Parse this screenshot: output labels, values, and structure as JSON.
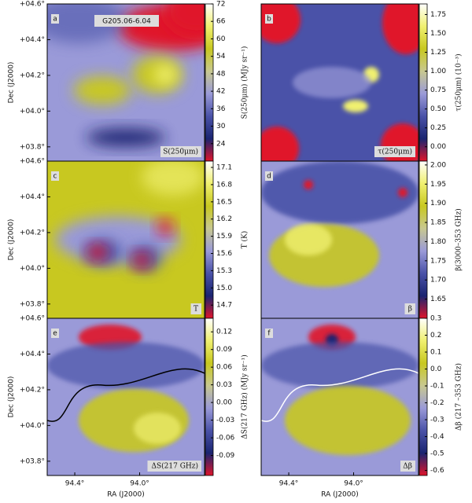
{
  "colormap": [
    "#e0142a",
    "#1a2470",
    "#4a52a8",
    "#9a9ad8",
    "#c8c890",
    "#c8c820",
    "#f0f070",
    "#ffffff"
  ],
  "chart_data": [
    {
      "type": "heatmap",
      "panel": "a",
      "title": "G205.06-6.04",
      "label": "S(250μm)",
      "colorbar_label": "S(250μm) (MJy sr⁻¹)",
      "clim": [
        18,
        72
      ],
      "cticks": [
        24,
        30,
        36,
        42,
        48,
        54,
        60,
        66,
        72
      ],
      "ylabel": "Dec (J2000)",
      "ylim": [
        3.72,
        4.6
      ],
      "yticks": [
        {
          "value": 3.8,
          "label": "+03.8°"
        },
        {
          "value": 4.0,
          "label": "+04.0°"
        },
        {
          "value": 4.2,
          "label": "+04.2°"
        },
        {
          "value": 4.4,
          "label": "+04.4°"
        },
        {
          "value": 4.6,
          "label": "+04.6°"
        }
      ]
    },
    {
      "type": "heatmap",
      "panel": "b",
      "label": "τ(250μm)",
      "colorbar_label": "τ(250μm) (10⁻³)",
      "clim": [
        -0.19,
        1.89
      ],
      "cticks": [
        {
          "value": 0,
          "label": "0.00"
        },
        {
          "value": 0.25,
          "label": "0.25"
        },
        {
          "value": 0.5,
          "label": "0.50"
        },
        {
          "value": 0.75,
          "label": "0.75"
        },
        {
          "value": 1,
          "label": "1.00"
        },
        {
          "value": 1.25,
          "label": "1.25"
        },
        {
          "value": 1.5,
          "label": "1.50"
        },
        {
          "value": 1.75,
          "label": "1.75"
        }
      ]
    },
    {
      "type": "heatmap",
      "panel": "c",
      "label": "T",
      "colorbar_label": "T (K)",
      "clim": [
        14.47,
        17.21
      ],
      "cticks": [
        14.7,
        {
          "value": 15,
          "label": "15.0"
        },
        15.3,
        15.6,
        15.9,
        16.2,
        16.5,
        16.8,
        17.1
      ],
      "ylabel": "Dec (J2000)",
      "ylim": [
        3.72,
        4.6
      ],
      "yticks": [
        {
          "value": 3.8,
          "label": "+03.8°"
        },
        {
          "value": 4.0,
          "label": "+04.0°"
        },
        {
          "value": 4.2,
          "label": "+04.2°"
        },
        {
          "value": 4.4,
          "label": "+04.4°"
        },
        {
          "value": 4.6,
          "label": "+04.6°"
        }
      ]
    },
    {
      "type": "heatmap",
      "panel": "d",
      "label": "β",
      "colorbar_label": "β(3000–353 GHz)",
      "clim": [
        1.6,
        2.01
      ],
      "cticks": [
        1.65,
        {
          "value": 1.7,
          "label": "1.70"
        },
        1.75,
        {
          "value": 1.8,
          "label": "1.80"
        },
        1.85,
        {
          "value": 1.9,
          "label": "1.90"
        },
        1.95,
        {
          "value": 2,
          "label": "2.00"
        }
      ]
    },
    {
      "type": "heatmap",
      "panel": "e",
      "label": "ΔS(217 GHz)",
      "colorbar_label": "ΔS(217 GHz) (MJy sr⁻¹)",
      "clim": [
        -0.124,
        0.143
      ],
      "cticks": [
        -0.09,
        -0.06,
        -0.03,
        {
          "value": 0,
          "label": "0.00"
        },
        0.03,
        0.06,
        0.09,
        0.12
      ],
      "ylabel": "Dec (J2000)",
      "ylim": [
        3.72,
        4.6
      ],
      "yticks": [
        {
          "value": 3.8,
          "label": "+03.8°"
        },
        {
          "value": 4.0,
          "label": "+04.0°"
        },
        {
          "value": 4.2,
          "label": "+04.2°"
        },
        {
          "value": 4.4,
          "label": "+04.4°"
        },
        {
          "value": 4.6,
          "label": "+04.6°"
        }
      ],
      "xlabel": "RA (J2000)",
      "xlim": [
        94.57,
        93.6
      ],
      "xticks": [
        {
          "value": 94.4,
          "label": "94.4°"
        },
        {
          "value": 94.0,
          "label": "94.0°"
        }
      ]
    },
    {
      "type": "heatmap",
      "panel": "f",
      "label": "Δβ",
      "colorbar_label": "Δβ (217 –353 GHz)",
      "clim": [
        -0.63,
        0.3
      ],
      "cticks": [
        -0.6,
        -0.5,
        -0.4,
        -0.3,
        -0.2,
        -0.1,
        {
          "value": 0,
          "label": "0.0"
        },
        0.1,
        0.2,
        0.3
      ],
      "xlabel": "RA (J2000)",
      "xlim": [
        94.57,
        93.6
      ],
      "xticks": [
        {
          "value": 94.4,
          "label": "94.4°"
        },
        {
          "value": 94.0,
          "label": "94.0°"
        }
      ]
    }
  ]
}
